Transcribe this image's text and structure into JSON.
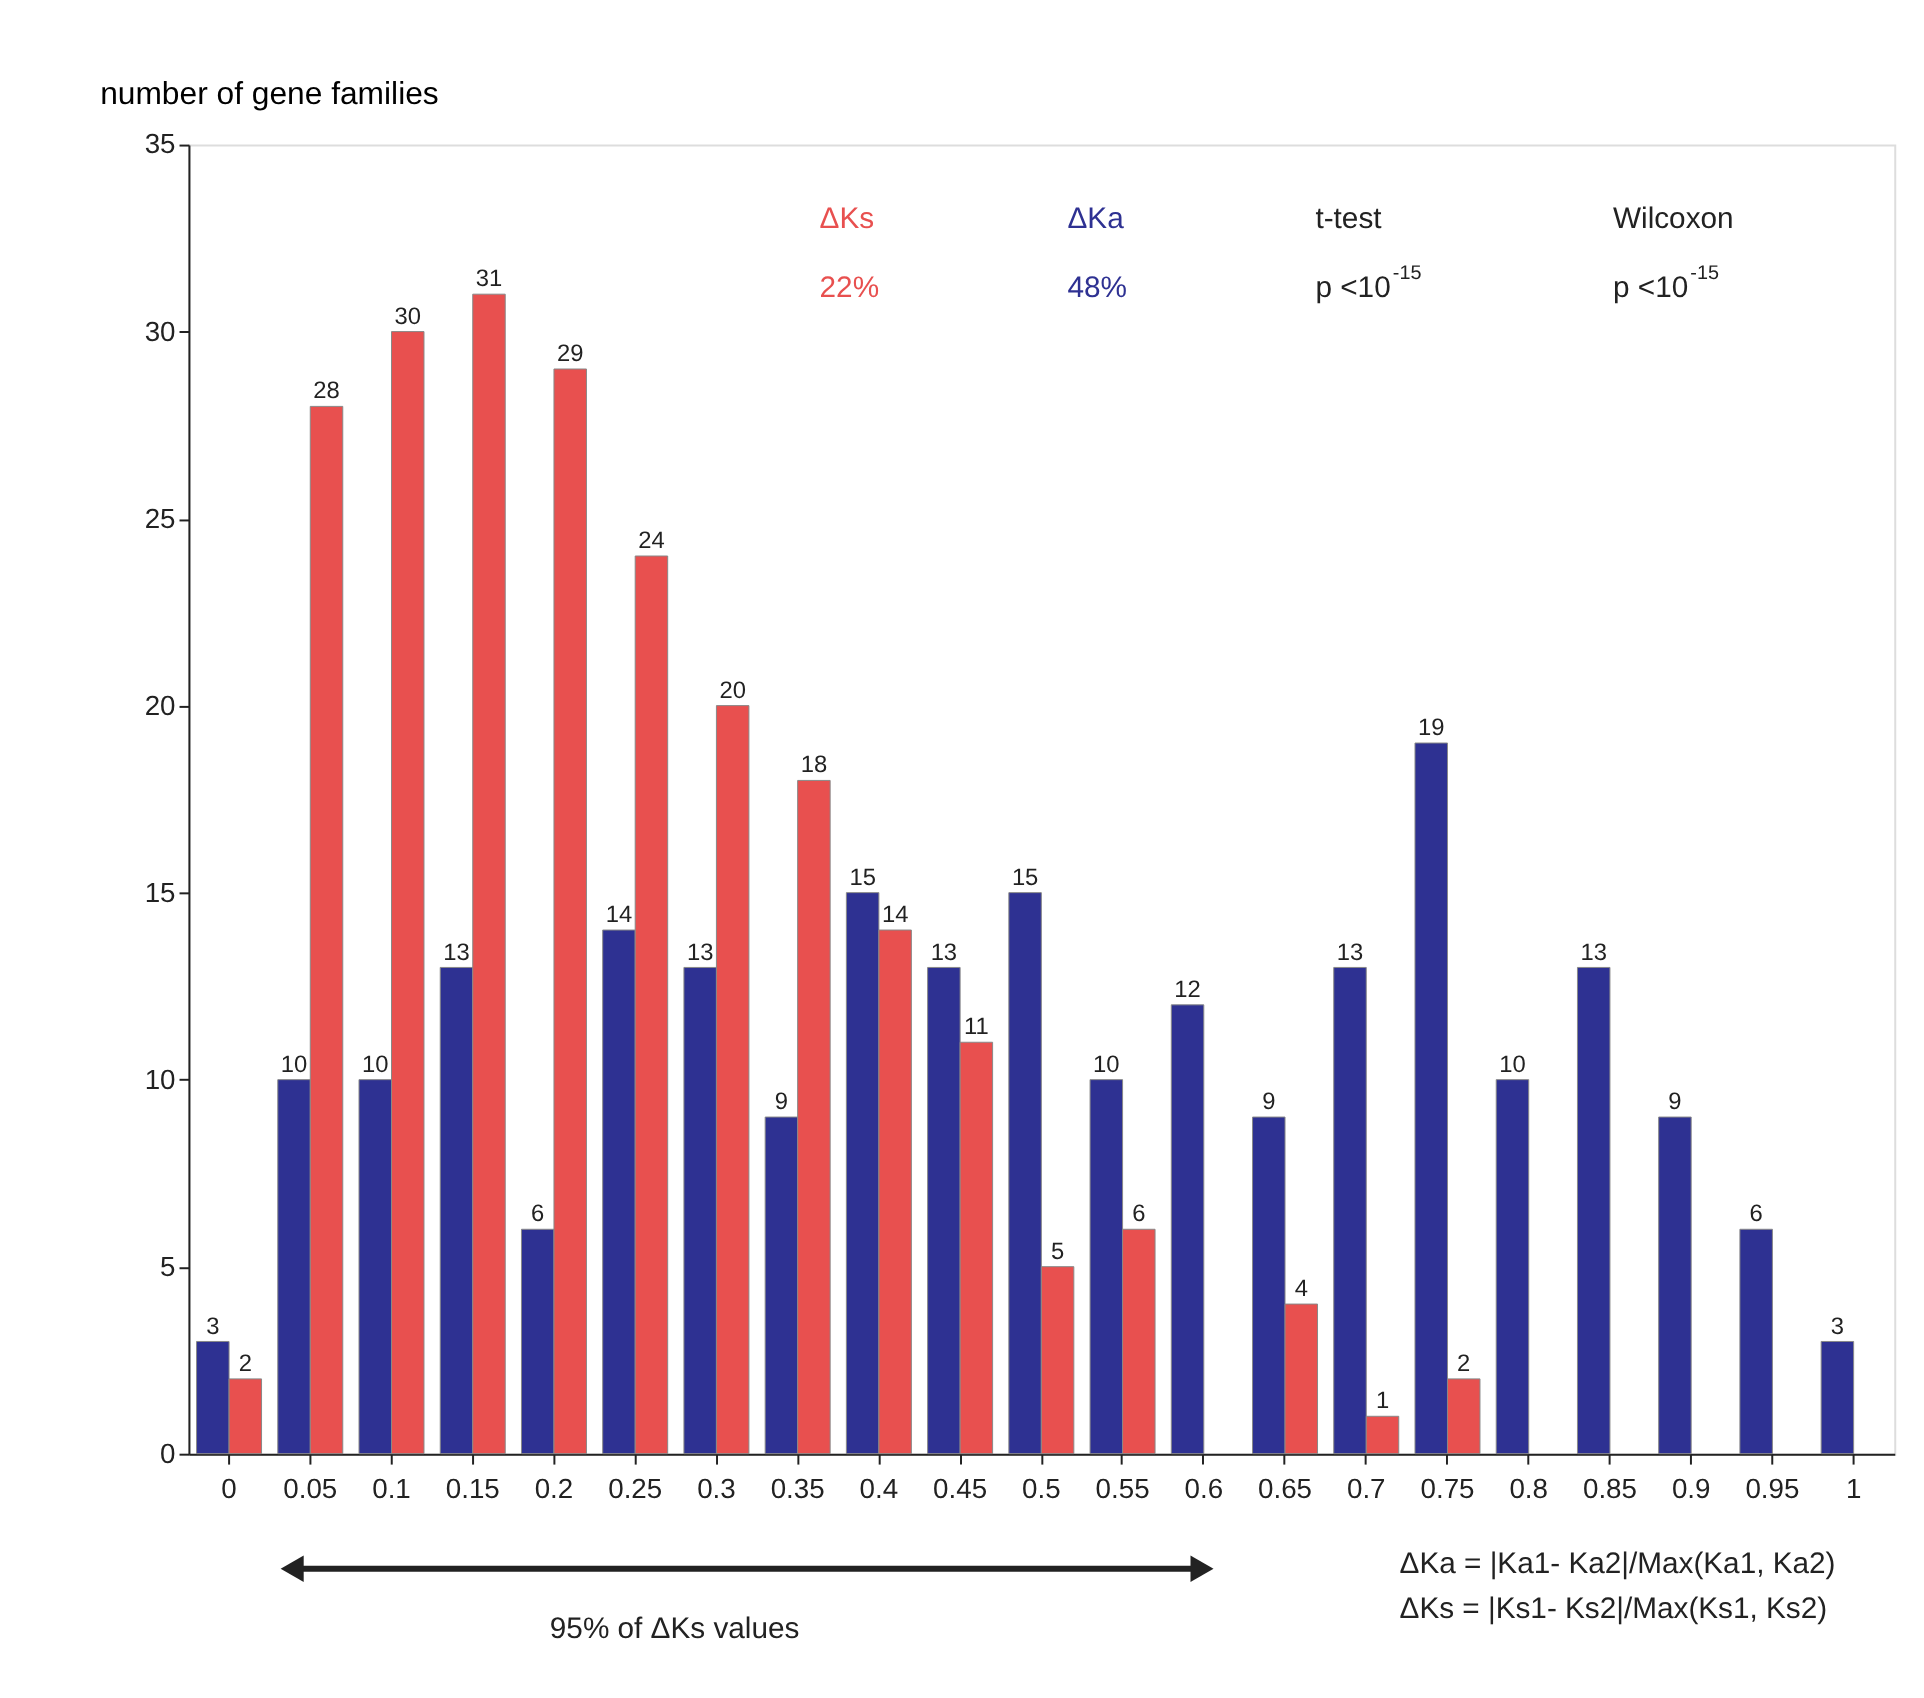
{
  "chart_data": {
    "type": "bar",
    "ylabel": "number of gene families",
    "categories": [
      "0",
      "0.05",
      "0.1",
      "0.15",
      "0.2",
      "0.25",
      "0.3",
      "0.35",
      "0.4",
      "0.45",
      "0.5",
      "0.55",
      "0.6",
      "0.65",
      "0.7",
      "0.75",
      "0.8",
      "0.85",
      "0.9",
      "0.95",
      "1"
    ],
    "series": [
      {
        "name": "ΔKa",
        "color": "#2e3192",
        "values": [
          3,
          10,
          10,
          13,
          6,
          14,
          13,
          9,
          15,
          13,
          15,
          10,
          12,
          9,
          13,
          19,
          10,
          13,
          9,
          6,
          3
        ]
      },
      {
        "name": "ΔKs",
        "color": "#e8504f",
        "values": [
          2,
          28,
          30,
          31,
          29,
          24,
          20,
          18,
          14,
          11,
          5,
          6,
          null,
          4,
          1,
          2,
          null,
          null,
          null,
          null,
          null
        ]
      }
    ],
    "ylim": [
      0,
      35
    ],
    "yticks": [
      0,
      5,
      10,
      15,
      20,
      25,
      30,
      35
    ],
    "grid": false,
    "legend": "top",
    "data_labels": true,
    "annotations": [
      "48%",
      "22%",
      "t-test",
      "p <10$^{-15}$",
      "Wilcoxon",
      "p <10$^{-15}$",
      "95% of ΔKs values",
      "ΔKa = |Ka1- Ka2|/Max(Ka1, Ka2)",
      "ΔKs = |Ks1- Ks2|/Max(Ks1, Ks2)"
    ]
  }
}
